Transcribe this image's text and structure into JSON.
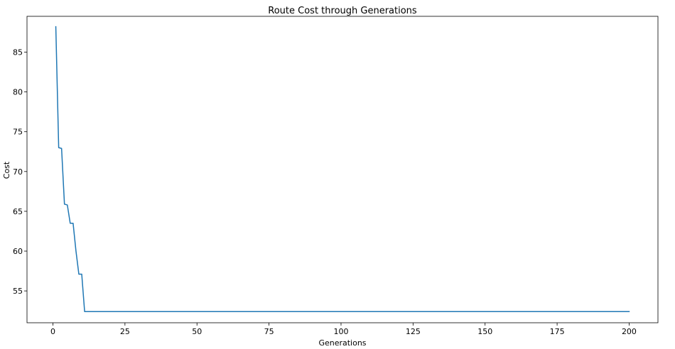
{
  "chart_data": {
    "type": "line",
    "title": "Route Cost through Generations",
    "xlabel": "Generations",
    "ylabel": "Cost",
    "xlim": [
      -9,
      210
    ],
    "ylim": [
      51.0,
      89.5
    ],
    "xticks": [
      0,
      25,
      50,
      75,
      100,
      125,
      150,
      175,
      200
    ],
    "yticks": [
      55,
      60,
      65,
      70,
      75,
      80,
      85
    ],
    "grid": false,
    "series": [
      {
        "color": "#1f77b4",
        "points": [
          [
            1,
            88.2
          ],
          [
            2,
            73.0
          ],
          [
            3,
            72.9
          ],
          [
            4,
            65.9
          ],
          [
            5,
            65.8
          ],
          [
            6,
            63.5
          ],
          [
            7,
            63.5
          ],
          [
            8,
            60.0
          ],
          [
            9,
            57.1
          ],
          [
            10,
            57.1
          ],
          [
            11,
            52.4
          ],
          [
            200,
            52.4
          ]
        ]
      }
    ]
  }
}
